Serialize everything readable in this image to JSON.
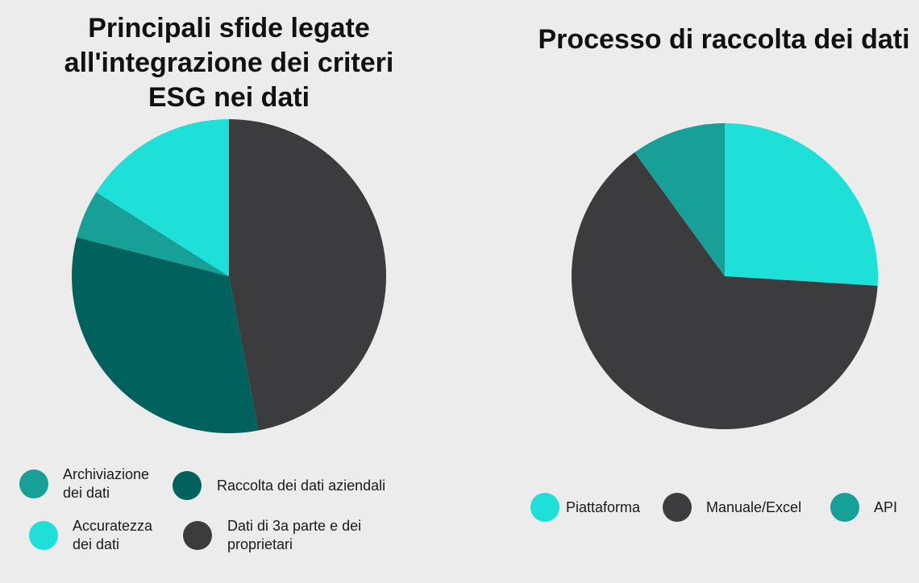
{
  "colors": {
    "background": "#ececec",
    "turquoise": "#1ee0d9",
    "teal": "#17a098",
    "dark_teal": "#00615d",
    "charcoal": "#3c3c3e"
  },
  "chart_data": [
    {
      "type": "pie",
      "title": "Principali sfide legate all'integrazione dei criteri ESG nei dati",
      "labels": [
        "Dati di 3a parte e dei proprietari",
        "Raccolta dei dati aziendali",
        "Archiviazione dei dati",
        "Accuratezza dei dati"
      ],
      "values": [
        47,
        32,
        5,
        16
      ],
      "unit": "%",
      "colors": [
        "#3c3c3e",
        "#00615d",
        "#17a098",
        "#1ee0d9"
      ],
      "legend": [
        {
          "label": "Archiviazione dei dati",
          "color": "#17a098"
        },
        {
          "label": "Raccolta dei dati aziendali",
          "color": "#00615d"
        },
        {
          "label": "Accuratezza dei dati",
          "color": "#1ee0d9"
        },
        {
          "label": "Dati di 3a parte e dei proprietari",
          "color": "#3c3c3e"
        }
      ],
      "legend_position": "bottom"
    },
    {
      "type": "pie",
      "title": "Processo di raccolta dei dati",
      "labels": [
        "Piattaforma",
        "Manuale/Excel",
        "API"
      ],
      "values": [
        26,
        64,
        10
      ],
      "unit": "%",
      "colors": [
        "#1ee0d9",
        "#3c3c3e",
        "#17a098"
      ],
      "legend": [
        {
          "label": "Piattaforma",
          "color": "#1ee0d9"
        },
        {
          "label": "Manuale/Excel",
          "color": "#3c3c3e"
        },
        {
          "label": "API",
          "color": "#17a098"
        }
      ],
      "legend_position": "bottom"
    }
  ]
}
